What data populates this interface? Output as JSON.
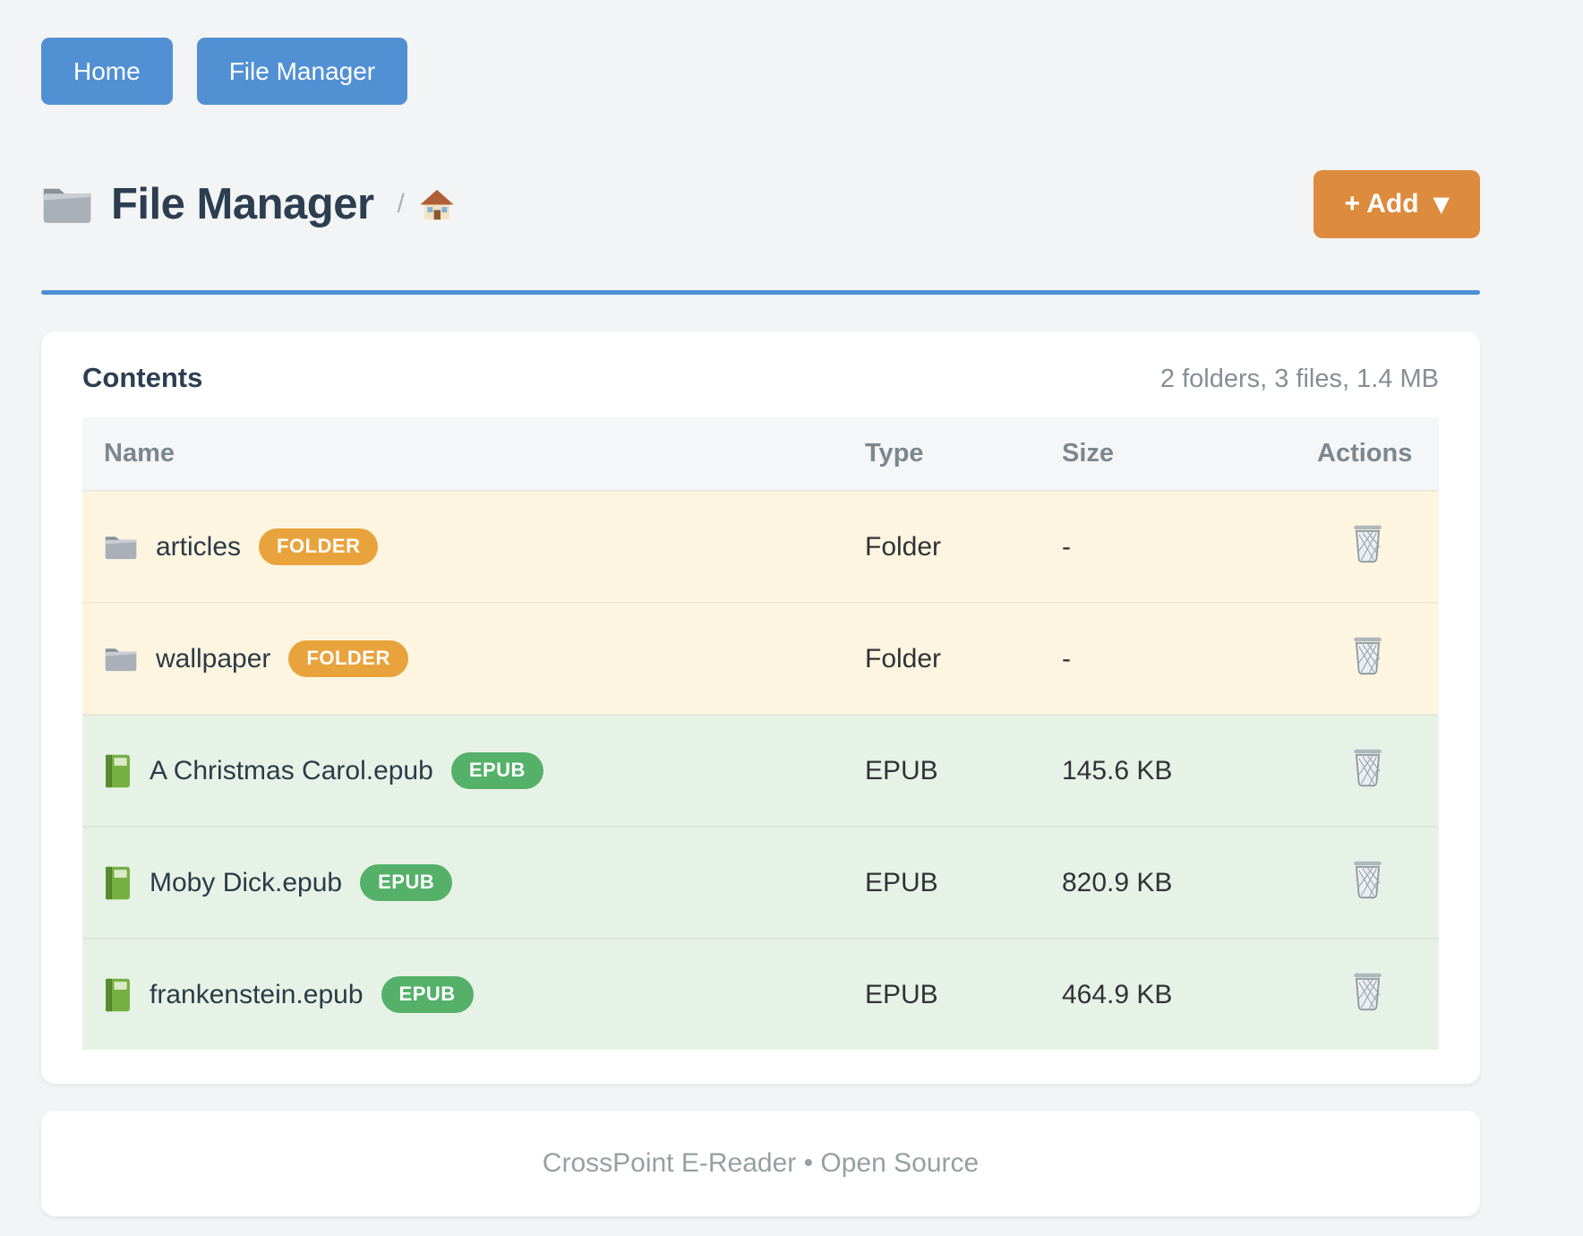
{
  "nav": {
    "buttons": [
      {
        "label": "Home"
      },
      {
        "label": "File Manager"
      }
    ]
  },
  "header": {
    "title": "File Manager",
    "title_icon": "folder-icon",
    "breadcrumb": {
      "separator": "/",
      "home_icon": "home-icon"
    },
    "add_button": {
      "label": "+ Add",
      "caret": "▼"
    }
  },
  "contents_card": {
    "title": "Contents",
    "summary": "2 folders, 3 files, 1.4 MB",
    "columns": [
      "Name",
      "Type",
      "Size",
      "Actions"
    ],
    "delete_icon": "trash-icon",
    "rows": [
      {
        "kind": "folder",
        "icon": "folder-icon",
        "name": "articles",
        "badge": "FOLDER",
        "type": "Folder",
        "size": "-"
      },
      {
        "kind": "folder",
        "icon": "folder-icon",
        "name": "wallpaper",
        "badge": "FOLDER",
        "type": "Folder",
        "size": "-"
      },
      {
        "kind": "epub",
        "icon": "book-icon",
        "name": "A Christmas Carol.epub",
        "badge": "EPUB",
        "type": "EPUB",
        "size": "145.6 KB"
      },
      {
        "kind": "epub",
        "icon": "book-icon",
        "name": "Moby Dick.epub",
        "badge": "EPUB",
        "type": "EPUB",
        "size": "820.9 KB"
      },
      {
        "kind": "epub",
        "icon": "book-icon",
        "name": "frankenstein.epub",
        "badge": "EPUB",
        "type": "EPUB",
        "size": "464.9 KB"
      }
    ]
  },
  "footer": {
    "text": "CrossPoint E-Reader • Open Source"
  },
  "colors": {
    "primary_blue": "#5290d4",
    "divider_blue": "#4a8fd3",
    "accent_orange": "#dd8b3d",
    "folder_badge": "#e9a33c",
    "epub_badge": "#55b169",
    "folder_row_bg": "#fdf5e0",
    "epub_row_bg": "#e7f2e7",
    "heading_text": "#2c3e50",
    "muted_text": "#868e96"
  }
}
